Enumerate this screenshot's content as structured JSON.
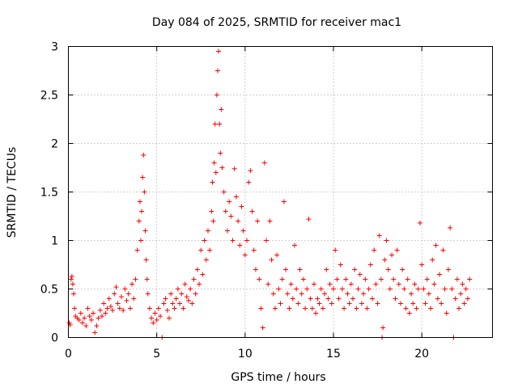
{
  "chart_data": {
    "type": "scatter",
    "title": "Day 084 of 2025, SRMTID for receiver mac1",
    "xlabel": "GPS time / hours",
    "ylabel": "SRMTID / TECUs",
    "xlim": [
      0,
      24
    ],
    "ylim": [
      0,
      3
    ],
    "xticks": [
      0,
      5,
      10,
      15,
      20
    ],
    "xtick_labels": [
      "0",
      "5",
      "10",
      "15",
      "20"
    ],
    "yticks": [
      0,
      0.5,
      1,
      1.5,
      2,
      2.5,
      3
    ],
    "ytick_labels": [
      "0",
      "0.5",
      "1",
      "1.5",
      "2",
      "2.5",
      "3"
    ],
    "grid": true,
    "marker": "+",
    "color": "#ff0000",
    "series": [
      {
        "name": "SRMTID",
        "points": [
          [
            0.05,
            0.15
          ],
          [
            0.1,
            0.13
          ],
          [
            0.15,
            0.6
          ],
          [
            0.2,
            0.63
          ],
          [
            0.25,
            0.55
          ],
          [
            0.3,
            0.45
          ],
          [
            0.35,
            0.3
          ],
          [
            0.4,
            0.22
          ],
          [
            0.5,
            0.2
          ],
          [
            0.6,
            0.18
          ],
          [
            0.7,
            0.25
          ],
          [
            0.8,
            0.15
          ],
          [
            0.9,
            0.2
          ],
          [
            1.0,
            0.12
          ],
          [
            1.1,
            0.3
          ],
          [
            1.2,
            0.22
          ],
          [
            1.3,
            0.18
          ],
          [
            1.4,
            0.25
          ],
          [
            1.5,
            0.05
          ],
          [
            1.6,
            0.12
          ],
          [
            1.7,
            0.2
          ],
          [
            1.8,
            0.28
          ],
          [
            1.9,
            0.22
          ],
          [
            2.0,
            0.35
          ],
          [
            2.1,
            0.25
          ],
          [
            2.2,
            0.3
          ],
          [
            2.3,
            0.4
          ],
          [
            2.4,
            0.32
          ],
          [
            2.5,
            0.28
          ],
          [
            2.6,
            0.45
          ],
          [
            2.7,
            0.52
          ],
          [
            2.8,
            0.35
          ],
          [
            2.9,
            0.3
          ],
          [
            3.0,
            0.42
          ],
          [
            3.1,
            0.28
          ],
          [
            3.2,
            0.5
          ],
          [
            3.3,
            0.38
          ],
          [
            3.4,
            0.45
          ],
          [
            3.5,
            0.3
          ],
          [
            3.6,
            0.55
          ],
          [
            3.7,
            0.4
          ],
          [
            3.8,
            0.6
          ],
          [
            3.9,
            0.9
          ],
          [
            4.0,
            1.2
          ],
          [
            4.05,
            1.4
          ],
          [
            4.1,
            1.0
          ],
          [
            4.15,
            1.3
          ],
          [
            4.2,
            1.65
          ],
          [
            4.25,
            1.88
          ],
          [
            4.3,
            1.5
          ],
          [
            4.35,
            1.1
          ],
          [
            4.4,
            0.8
          ],
          [
            4.45,
            0.6
          ],
          [
            4.5,
            0.45
          ],
          [
            4.6,
            0.3
          ],
          [
            4.7,
            0.2
          ],
          [
            4.8,
            0.15
          ],
          [
            4.9,
            0.25
          ],
          [
            5.0,
            0.18
          ],
          [
            5.1,
            0.3
          ],
          [
            5.2,
            0.22
          ],
          [
            5.3,
            0.0
          ],
          [
            5.4,
            0.35
          ],
          [
            5.5,
            0.4
          ],
          [
            5.6,
            0.28
          ],
          [
            5.7,
            0.2
          ],
          [
            5.8,
            0.45
          ],
          [
            5.9,
            0.35
          ],
          [
            6.0,
            0.3
          ],
          [
            6.1,
            0.4
          ],
          [
            6.2,
            0.5
          ],
          [
            6.3,
            0.35
          ],
          [
            6.4,
            0.45
          ],
          [
            6.5,
            0.3
          ],
          [
            6.6,
            0.55
          ],
          [
            6.7,
            0.42
          ],
          [
            6.8,
            0.38
          ],
          [
            6.9,
            0.5
          ],
          [
            7.0,
            0.35
          ],
          [
            7.1,
            0.6
          ],
          [
            7.2,
            0.45
          ],
          [
            7.3,
            0.7
          ],
          [
            7.4,
            0.55
          ],
          [
            7.5,
            0.9
          ],
          [
            7.6,
            0.65
          ],
          [
            7.7,
            1.0
          ],
          [
            7.8,
            0.8
          ],
          [
            7.9,
            1.1
          ],
          [
            8.0,
            0.9
          ],
          [
            8.1,
            1.3
          ],
          [
            8.15,
            1.6
          ],
          [
            8.2,
            1.2
          ],
          [
            8.25,
            1.8
          ],
          [
            8.3,
            2.2
          ],
          [
            8.35,
            1.7
          ],
          [
            8.4,
            2.5
          ],
          [
            8.45,
            2.75
          ],
          [
            8.5,
            2.95
          ],
          [
            8.55,
            2.2
          ],
          [
            8.6,
            1.9
          ],
          [
            8.65,
            2.35
          ],
          [
            8.7,
            1.75
          ],
          [
            8.8,
            1.5
          ],
          [
            8.9,
            1.3
          ],
          [
            9.0,
            1.1
          ],
          [
            9.1,
            1.4
          ],
          [
            9.2,
            1.25
          ],
          [
            9.3,
            1.0
          ],
          [
            9.4,
            1.74
          ],
          [
            9.5,
            1.45
          ],
          [
            9.6,
            1.2
          ],
          [
            9.7,
            0.95
          ],
          [
            9.8,
            1.35
          ],
          [
            9.9,
            1.1
          ],
          [
            10.0,
            0.85
          ],
          [
            10.1,
            1.0
          ],
          [
            10.2,
            1.6
          ],
          [
            10.3,
            1.72
          ],
          [
            10.4,
            1.3
          ],
          [
            10.5,
            0.9
          ],
          [
            10.6,
            0.7
          ],
          [
            10.7,
            1.2
          ],
          [
            10.8,
            0.6
          ],
          [
            10.9,
            0.3
          ],
          [
            11.0,
            0.1
          ],
          [
            11.1,
            1.8
          ],
          [
            11.2,
            1.0
          ],
          [
            11.3,
            0.55
          ],
          [
            11.4,
            1.2
          ],
          [
            11.5,
            0.8
          ],
          [
            11.6,
            0.45
          ],
          [
            11.7,
            0.3
          ],
          [
            11.8,
            0.85
          ],
          [
            11.9,
            0.5
          ],
          [
            12.0,
            0.35
          ],
          [
            12.1,
            0.6
          ],
          [
            12.2,
            1.4
          ],
          [
            12.3,
            0.7
          ],
          [
            12.4,
            0.45
          ],
          [
            12.5,
            0.3
          ],
          [
            12.6,
            0.55
          ],
          [
            12.7,
            0.4
          ],
          [
            12.8,
            0.95
          ],
          [
            12.9,
            0.5
          ],
          [
            13.0,
            0.35
          ],
          [
            13.1,
            0.7
          ],
          [
            13.2,
            0.45
          ],
          [
            13.3,
            0.6
          ],
          [
            13.4,
            0.3
          ],
          [
            13.5,
            0.5
          ],
          [
            13.6,
            1.22
          ],
          [
            13.7,
            0.4
          ],
          [
            13.8,
            0.3
          ],
          [
            13.9,
            0.55
          ],
          [
            14.0,
            0.25
          ],
          [
            14.1,
            0.4
          ],
          [
            14.2,
            0.35
          ],
          [
            14.3,
            0.5
          ],
          [
            14.4,
            0.3
          ],
          [
            14.5,
            0.45
          ],
          [
            14.6,
            0.7
          ],
          [
            14.7,
            0.4
          ],
          [
            14.8,
            0.55
          ],
          [
            14.9,
            0.35
          ],
          [
            15.0,
            0.5
          ],
          [
            15.1,
            0.9
          ],
          [
            15.2,
            0.6
          ],
          [
            15.3,
            0.4
          ],
          [
            15.4,
            0.75
          ],
          [
            15.5,
            0.5
          ],
          [
            15.6,
            0.3
          ],
          [
            15.7,
            0.6
          ],
          [
            15.8,
            0.45
          ],
          [
            15.9,
            0.35
          ],
          [
            16.0,
            0.55
          ],
          [
            16.1,
            0.4
          ],
          [
            16.2,
            0.7
          ],
          [
            16.3,
            0.3
          ],
          [
            16.4,
            0.5
          ],
          [
            16.5,
            0.65
          ],
          [
            16.6,
            0.35
          ],
          [
            16.7,
            0.45
          ],
          [
            16.8,
            0.6
          ],
          [
            16.9,
            0.3
          ],
          [
            17.0,
            0.5
          ],
          [
            17.1,
            0.75
          ],
          [
            17.2,
            0.4
          ],
          [
            17.3,
            0.9
          ],
          [
            17.4,
            0.55
          ],
          [
            17.5,
            0.35
          ],
          [
            17.6,
            1.05
          ],
          [
            17.7,
            0.6
          ],
          [
            17.75,
            0.0
          ],
          [
            17.8,
            0.1
          ],
          [
            17.9,
            0.8
          ],
          [
            18.0,
            1.0
          ],
          [
            18.1,
            0.7
          ],
          [
            18.2,
            0.5
          ],
          [
            18.3,
            0.85
          ],
          [
            18.4,
            0.6
          ],
          [
            18.5,
            0.4
          ],
          [
            18.6,
            0.9
          ],
          [
            18.7,
            0.55
          ],
          [
            18.8,
            0.35
          ],
          [
            18.9,
            0.7
          ],
          [
            19.0,
            0.5
          ],
          [
            19.1,
            0.3
          ],
          [
            19.2,
            0.6
          ],
          [
            19.3,
            0.25
          ],
          [
            19.4,
            0.45
          ],
          [
            19.5,
            0.35
          ],
          [
            19.6,
            0.55
          ],
          [
            19.7,
            0.3
          ],
          [
            19.8,
            0.5
          ],
          [
            19.9,
            1.18
          ],
          [
            20.0,
            0.75
          ],
          [
            20.1,
            0.5
          ],
          [
            20.2,
            0.35
          ],
          [
            20.3,
            0.6
          ],
          [
            20.4,
            0.45
          ],
          [
            20.5,
            0.3
          ],
          [
            20.6,
            0.8
          ],
          [
            20.7,
            0.55
          ],
          [
            20.8,
            0.95
          ],
          [
            20.9,
            0.4
          ],
          [
            21.0,
            0.65
          ],
          [
            21.1,
            0.35
          ],
          [
            21.2,
            0.9
          ],
          [
            21.3,
            0.5
          ],
          [
            21.4,
            0.25
          ],
          [
            21.5,
            0.7
          ],
          [
            21.6,
            1.13
          ],
          [
            21.7,
            0.5
          ],
          [
            21.8,
            0.0
          ],
          [
            21.9,
            0.4
          ],
          [
            22.0,
            0.6
          ],
          [
            22.1,
            0.3
          ],
          [
            22.2,
            0.45
          ],
          [
            22.3,
            0.55
          ],
          [
            22.4,
            0.35
          ],
          [
            22.5,
            0.5
          ],
          [
            22.6,
            0.4
          ],
          [
            22.7,
            0.6
          ]
        ]
      }
    ]
  }
}
